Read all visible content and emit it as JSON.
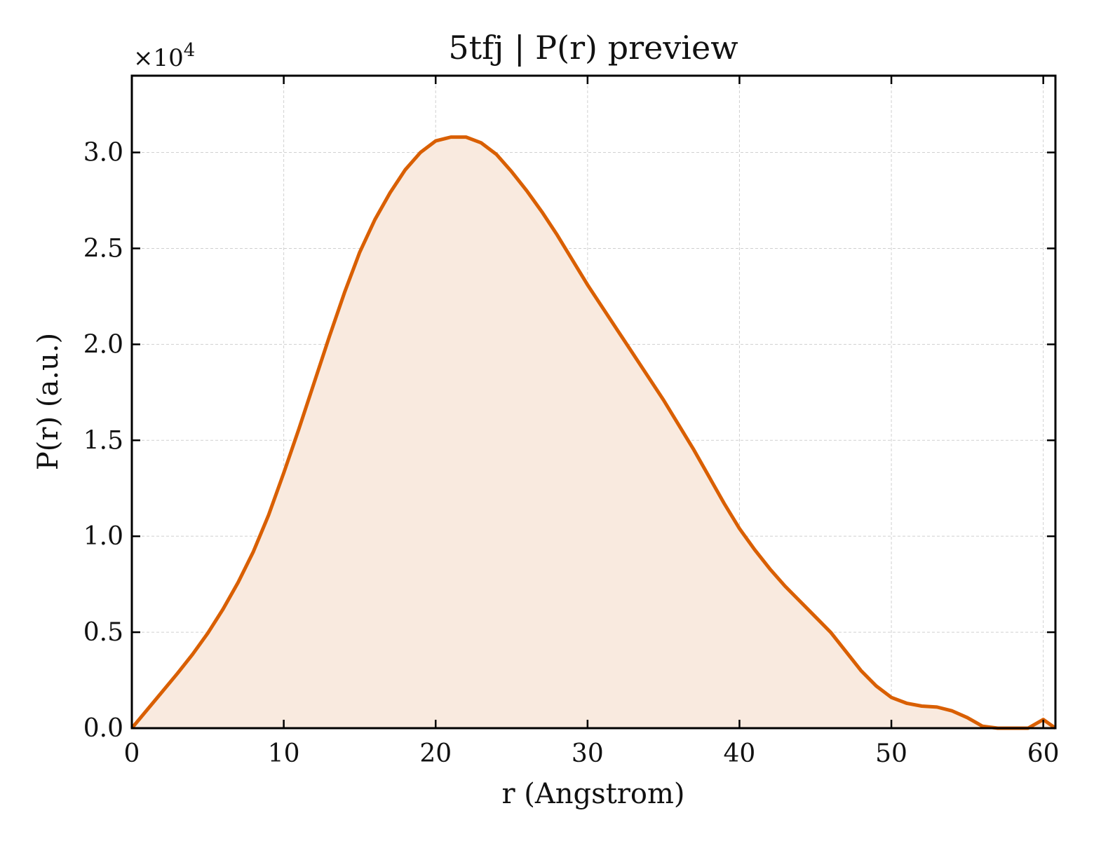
{
  "chart_data": {
    "type": "area",
    "title": "5tfj | P(r) preview",
    "xlabel": "r (Angstrom)",
    "ylabel": "P(r) (a.u.)",
    "y_multiplier_label": "×10",
    "y_multiplier_exponent": "4",
    "xlim": [
      0,
      60.8
    ],
    "ylim": [
      0,
      3.4
    ],
    "y_scale": 10000,
    "grid": true,
    "legend": "none",
    "xticks": [
      0,
      10,
      20,
      30,
      40,
      50,
      60
    ],
    "yticks": [
      0.0,
      0.5,
      1.0,
      1.5,
      2.0,
      2.5,
      3.0
    ],
    "xtick_labels": [
      "0",
      "10",
      "20",
      "30",
      "40",
      "50",
      "60"
    ],
    "ytick_labels": [
      "0.0",
      "0.5",
      "1.0",
      "1.5",
      "2.0",
      "2.5",
      "3.0"
    ],
    "colors": {
      "line": "#d95f02",
      "fill": "#f9eadf",
      "grid": "#d0d0d0",
      "axes": "#000000"
    },
    "series": [
      {
        "x": [
          0,
          1,
          2,
          3,
          4,
          5,
          6,
          7,
          8,
          9,
          10,
          11,
          12,
          13,
          14,
          15,
          16,
          17,
          18,
          19,
          20,
          21,
          22,
          23,
          24,
          25,
          26,
          27,
          28,
          29,
          30,
          31,
          32,
          33,
          34,
          35,
          36,
          37,
          38,
          39,
          40,
          41,
          42,
          43,
          44,
          45,
          46,
          47,
          48,
          49,
          50,
          51,
          52,
          53,
          54,
          55,
          56,
          57,
          58,
          59,
          60,
          60.8
        ],
        "y": [
          0,
          950,
          1900,
          2850,
          3850,
          4950,
          6200,
          7600,
          9200,
          11100,
          13300,
          15600,
          18000,
          20400,
          22700,
          24800,
          26500,
          27900,
          29100,
          30000,
          30600,
          30800,
          30800,
          30500,
          29900,
          29000,
          28000,
          26900,
          25700,
          24400,
          23100,
          21900,
          20700,
          19500,
          18300,
          17100,
          15800,
          14500,
          13100,
          11700,
          10400,
          9300,
          8300,
          7400,
          6600,
          5800,
          5000,
          4000,
          3000,
          2200,
          1600,
          1300,
          1150,
          1100,
          900,
          550,
          100,
          0,
          0,
          0,
          450,
          0
        ]
      }
    ]
  }
}
